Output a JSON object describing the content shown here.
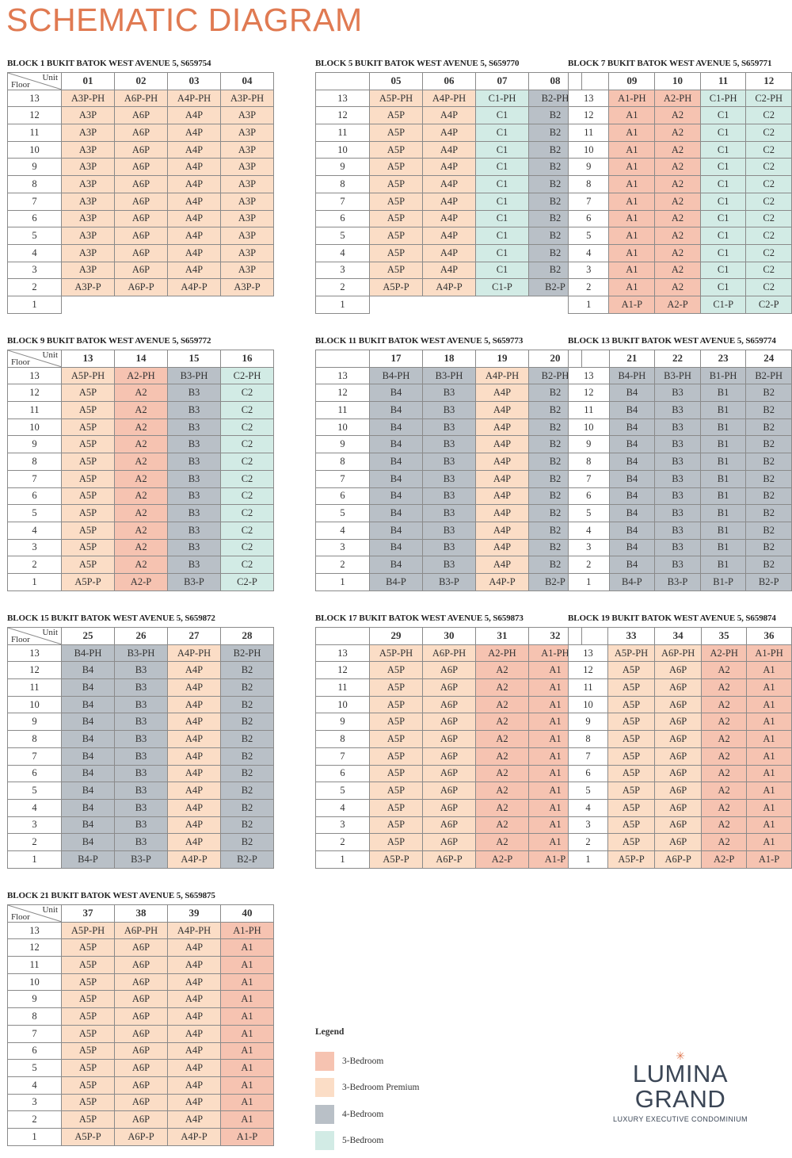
{
  "title": "SCHEMATIC DIAGRAM",
  "corner": {
    "unit": "Unit",
    "floor": "Floor"
  },
  "floors": [
    "13",
    "12",
    "11",
    "10",
    "9",
    "8",
    "7",
    "6",
    "5",
    "4",
    "3",
    "2",
    "1"
  ],
  "colors": {
    "A1": "#f6c3b1",
    "A2": "#f6c3b1",
    "A3P": "#fbddc6",
    "A4P": "#fbddc6",
    "A5P": "#fbddc6",
    "A6P": "#fbddc6",
    "B1": "#b9c0c7",
    "B2": "#b9c0c7",
    "B3": "#b9c0c7",
    "B4": "#b9c0c7",
    "C1": "#d2ebe5",
    "C2": "#d2ebe5"
  },
  "blocks": [
    {
      "title": "BLOCK 1 BUKIT BATOK WEST AVENUE 5, S659754",
      "units": [
        "01",
        "02",
        "03",
        "04"
      ],
      "types": [
        "A3P",
        "A6P",
        "A4P",
        "A3P"
      ],
      "hasFloor1": false
    },
    {
      "title": "BLOCK 5 BUKIT BATOK WEST AVENUE 5, S659770",
      "units": [
        "05",
        "06",
        "07",
        "08"
      ],
      "types": [
        "A5P",
        "A4P",
        "C1",
        "B2"
      ],
      "hasFloor1": false
    },
    {
      "title": "BLOCK 7 BUKIT BATOK WEST AVENUE 5, S659771",
      "units": [
        "09",
        "10",
        "11",
        "12"
      ],
      "types": [
        "A1",
        "A2",
        "C1",
        "C2"
      ],
      "hasFloor1": true
    },
    {
      "title": "BLOCK 9 BUKIT BATOK WEST AVENUE 5, S659772",
      "units": [
        "13",
        "14",
        "15",
        "16"
      ],
      "types": [
        "A5P",
        "A2",
        "B3",
        "C2"
      ],
      "hasFloor1": true
    },
    {
      "title": "BLOCK 11 BUKIT BATOK WEST AVENUE 5, S659773",
      "units": [
        "17",
        "18",
        "19",
        "20"
      ],
      "types": [
        "B4",
        "B3",
        "A4P",
        "B2"
      ],
      "hasFloor1": true
    },
    {
      "title": "BLOCK 13 BUKIT BATOK WEST AVENUE 5, S659774",
      "units": [
        "21",
        "22",
        "23",
        "24"
      ],
      "types": [
        "B4",
        "B3",
        "B1",
        "B2"
      ],
      "hasFloor1": true
    },
    {
      "title": "BLOCK 15 BUKIT BATOK WEST AVENUE 5, S659872",
      "units": [
        "25",
        "26",
        "27",
        "28"
      ],
      "types": [
        "B4",
        "B3",
        "A4P",
        "B2"
      ],
      "hasFloor1": true
    },
    {
      "title": "BLOCK 17 BUKIT BATOK WEST AVENUE 5, S659873",
      "units": [
        "29",
        "30",
        "31",
        "32"
      ],
      "types": [
        "A5P",
        "A6P",
        "A2",
        "A1"
      ],
      "hasFloor1": true
    },
    {
      "title": "BLOCK 19 BUKIT BATOK WEST AVENUE 5, S659874",
      "units": [
        "33",
        "34",
        "35",
        "36"
      ],
      "types": [
        "A5P",
        "A6P",
        "A2",
        "A1"
      ],
      "hasFloor1": true
    },
    {
      "title": "BLOCK 21 BUKIT BATOK WEST AVENUE 5, S659875",
      "units": [
        "37",
        "38",
        "39",
        "40"
      ],
      "types": [
        "A5P",
        "A6P",
        "A4P",
        "A1"
      ],
      "hasFloor1": true
    }
  ],
  "legend": {
    "title": "Legend",
    "items": [
      {
        "label": "3-Bedroom",
        "color": "#f6c3b1"
      },
      {
        "label": "3-Bedroom Premium",
        "color": "#fbddc6"
      },
      {
        "label": "4-Bedroom",
        "color": "#b9c0c7"
      },
      {
        "label": "5-Bedroom",
        "color": "#d2ebe5"
      }
    ]
  },
  "logo": {
    "line1": "LUMINA",
    "line2": "GRAND",
    "tagline": "LUXURY EXECUTIVE CONDOMINIUM",
    "star": "✳"
  }
}
